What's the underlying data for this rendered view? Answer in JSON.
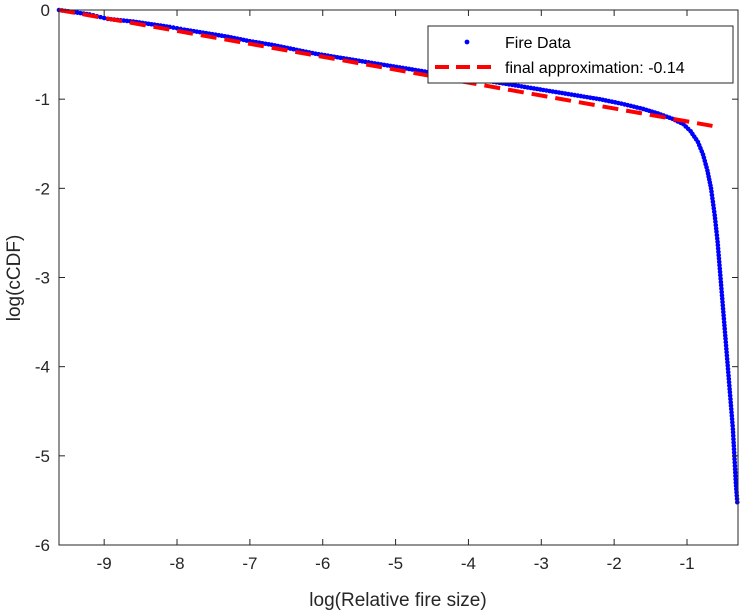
{
  "chart_data": {
    "type": "scatter",
    "xlabel": "log(Relative fire size)",
    "ylabel": "log(cCDF)",
    "xlim": [
      -9.62,
      -0.3
    ],
    "ylim": [
      -6,
      0
    ],
    "xticks": [
      -9,
      -8,
      -7,
      -6,
      -5,
      -4,
      -3,
      -2,
      -1
    ],
    "yticks": [
      0,
      -1,
      -2,
      -3,
      -4,
      -5,
      -6
    ],
    "xtick_labels": [
      "-9",
      "-8",
      "-7",
      "-6",
      "-5",
      "-4",
      "-3",
      "-2",
      "-1"
    ],
    "ytick_labels": [
      "0",
      "-1",
      "-2",
      "-3",
      "-4",
      "-5",
      "-6"
    ],
    "grid": false,
    "legend_position": "top-right",
    "series": [
      {
        "name": "Fire Data",
        "style": "markers",
        "color": "#0000ff",
        "points": [
          [
            -9.62,
            0.0
          ],
          [
            -9.45,
            -0.02
          ],
          [
            -9.2,
            -0.05
          ],
          [
            -9.05,
            -0.08
          ],
          [
            -8.95,
            -0.1
          ],
          [
            -8.6,
            -0.13
          ],
          [
            -8.35,
            -0.16
          ],
          [
            -8.1,
            -0.19
          ],
          [
            -7.9,
            -0.22
          ],
          [
            -7.6,
            -0.26
          ],
          [
            -7.3,
            -0.3
          ],
          [
            -7.0,
            -0.35
          ],
          [
            -6.7,
            -0.39
          ],
          [
            -6.4,
            -0.44
          ],
          [
            -6.1,
            -0.49
          ],
          [
            -5.8,
            -0.53
          ],
          [
            -5.5,
            -0.57
          ],
          [
            -5.2,
            -0.61
          ],
          [
            -4.9,
            -0.65
          ],
          [
            -4.6,
            -0.69
          ],
          [
            -4.3,
            -0.73
          ],
          [
            -4.0,
            -0.77
          ],
          [
            -3.7,
            -0.8
          ],
          [
            -3.4,
            -0.84
          ],
          [
            -3.1,
            -0.88
          ],
          [
            -2.8,
            -0.92
          ],
          [
            -2.5,
            -0.96
          ],
          [
            -2.2,
            -1.0
          ],
          [
            -1.9,
            -1.05
          ],
          [
            -1.6,
            -1.11
          ],
          [
            -1.4,
            -1.16
          ],
          [
            -1.2,
            -1.22
          ],
          [
            -1.05,
            -1.28
          ],
          [
            -0.95,
            -1.36
          ],
          [
            -0.85,
            -1.48
          ],
          [
            -0.78,
            -1.62
          ],
          [
            -0.72,
            -1.8
          ],
          [
            -0.67,
            -2.0
          ],
          [
            -0.62,
            -2.3
          ],
          [
            -0.58,
            -2.6
          ],
          [
            -0.55,
            -2.9
          ],
          [
            -0.52,
            -3.2
          ],
          [
            -0.49,
            -3.5
          ],
          [
            -0.46,
            -3.8
          ],
          [
            -0.43,
            -4.1
          ],
          [
            -0.4,
            -4.4
          ],
          [
            -0.37,
            -4.7
          ],
          [
            -0.35,
            -5.0
          ],
          [
            -0.33,
            -5.3
          ],
          [
            -0.31,
            -5.52
          ]
        ]
      },
      {
        "name": "final approximation: -0.14",
        "style": "dashed-line",
        "color": "#ff0000",
        "x": [
          -9.62,
          -0.65
        ],
        "y": [
          0.0,
          -1.3
        ]
      }
    ]
  }
}
